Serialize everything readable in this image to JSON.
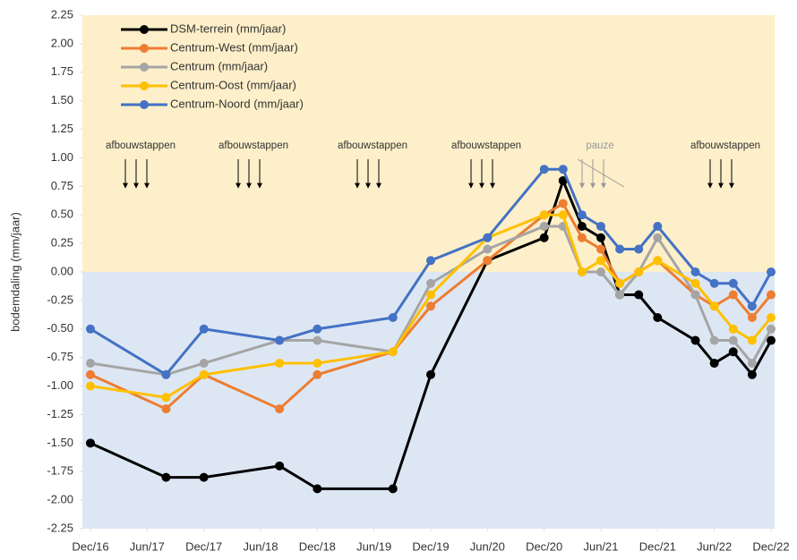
{
  "chart_data": {
    "type": "line",
    "y_label": "bodemdaling (mm/jaar)",
    "x": [
      "2016-12",
      "2017-08",
      "2017-12",
      "2018-08",
      "2018-12",
      "2019-08",
      "2019-12",
      "2020-06",
      "2020-12",
      "2021-02",
      "2021-04",
      "2021-06",
      "2021-08",
      "2021-10",
      "2021-12",
      "2022-04",
      "2022-06",
      "2022-08",
      "2022-10",
      "2022-12"
    ],
    "xlim": [
      "2016-12",
      "2022-12"
    ],
    "xticks": [
      {
        "value": "2016-12",
        "label": "Dec/16"
      },
      {
        "value": "2017-06",
        "label": "Jun/17"
      },
      {
        "value": "2017-12",
        "label": "Dec/17"
      },
      {
        "value": "2018-06",
        "label": "Jun/18"
      },
      {
        "value": "2018-12",
        "label": "Dec/18"
      },
      {
        "value": "2019-06",
        "label": "Jun/19"
      },
      {
        "value": "2019-12",
        "label": "Dec/19"
      },
      {
        "value": "2020-06",
        "label": "Jun/20"
      },
      {
        "value": "2020-12",
        "label": "Dec/20"
      },
      {
        "value": "2021-06",
        "label": "Jun/21"
      },
      {
        "value": "2021-12",
        "label": "Dec/21"
      },
      {
        "value": "2022-06",
        "label": "Jun/22"
      },
      {
        "value": "2022-12",
        "label": "Dec/22"
      }
    ],
    "ylim": [
      -2.25,
      2.25
    ],
    "yticks": [
      {
        "value": 2.25,
        "label": "2.25"
      },
      {
        "value": 2,
        "label": "2.00"
      },
      {
        "value": 1.75,
        "label": "1.75"
      },
      {
        "value": 1.5,
        "label": "1.50"
      },
      {
        "value": 1.25,
        "label": "1.25"
      },
      {
        "value": 1,
        "label": "1.00"
      },
      {
        "value": 0.75,
        "label": "0.75"
      },
      {
        "value": 0.5,
        "label": "0.50"
      },
      {
        "value": 0.25,
        "label": "0.25"
      },
      {
        "value": 0,
        "label": "0.00"
      },
      {
        "value": -0.25,
        "label": "-0.25"
      },
      {
        "value": -0.5,
        "label": "-0.50"
      },
      {
        "value": -0.75,
        "label": "-0.75"
      },
      {
        "value": -1,
        "label": "-1.00"
      },
      {
        "value": -1.25,
        "label": "-1.25"
      },
      {
        "value": -1.5,
        "label": "-1.50"
      },
      {
        "value": -1.75,
        "label": "-1.75"
      },
      {
        "value": -2,
        "label": "-2.00"
      },
      {
        "value": -2.25,
        "label": "-2.25"
      }
    ],
    "background_colors": {
      "positive": "#fdefc9",
      "negative": "#dde7f4"
    },
    "series": [
      {
        "name": "DSM-terrein (mm/jaar)",
        "color": "#000000",
        "values": [
          -1.5,
          -1.8,
          -1.8,
          -1.7,
          -1.9,
          -1.9,
          -0.9,
          0.1,
          0.3,
          0.8,
          0.4,
          0.3,
          -0.2,
          -0.2,
          -0.4,
          -0.6,
          -0.8,
          -0.7,
          -0.9,
          -0.6
        ]
      },
      {
        "name": "Centrum-West (mm/jaar)",
        "color": "#ed7d31",
        "values": [
          -0.9,
          -1.2,
          -0.9,
          -1.2,
          -0.9,
          -0.7,
          -0.3,
          0.1,
          0.5,
          0.6,
          0.3,
          0.2,
          -0.1,
          0,
          0.1,
          -0.2,
          -0.3,
          -0.2,
          -0.4,
          -0.2
        ]
      },
      {
        "name": "Centrum (mm/jaar)",
        "color": "#a5a5a5",
        "values": [
          -0.8,
          -0.9,
          -0.8,
          -0.6,
          -0.6,
          -0.7,
          -0.1,
          0.2,
          0.4,
          0.4,
          0,
          0,
          -0.2,
          0,
          0.3,
          -0.2,
          -0.6,
          -0.6,
          -0.8,
          -0.5
        ]
      },
      {
        "name": "Centrum-Oost (mm/jaar)",
        "color": "#ffc000",
        "values": [
          -1,
          -1.1,
          -0.9,
          -0.8,
          -0.8,
          -0.7,
          -0.2,
          0.3,
          0.5,
          0.5,
          0,
          0.1,
          -0.1,
          0,
          0.1,
          -0.1,
          -0.3,
          -0.5,
          -0.6,
          -0.4
        ]
      },
      {
        "name": "Centrum-Noord (mm/jaar)",
        "color": "#4472c4",
        "values": [
          -0.5,
          -0.9,
          -0.5,
          -0.6,
          -0.5,
          -0.4,
          0.1,
          0.3,
          0.9,
          0.9,
          0.5,
          0.4,
          0.2,
          0.2,
          0.4,
          0,
          -0.1,
          -0.1,
          -0.3,
          0
        ]
      }
    ],
    "annotations": [
      "afbouwstappen",
      "afbouwstappen",
      "afbouwstappen",
      "afbouwstappen",
      "pauze",
      "afbouwstappen"
    ]
  }
}
